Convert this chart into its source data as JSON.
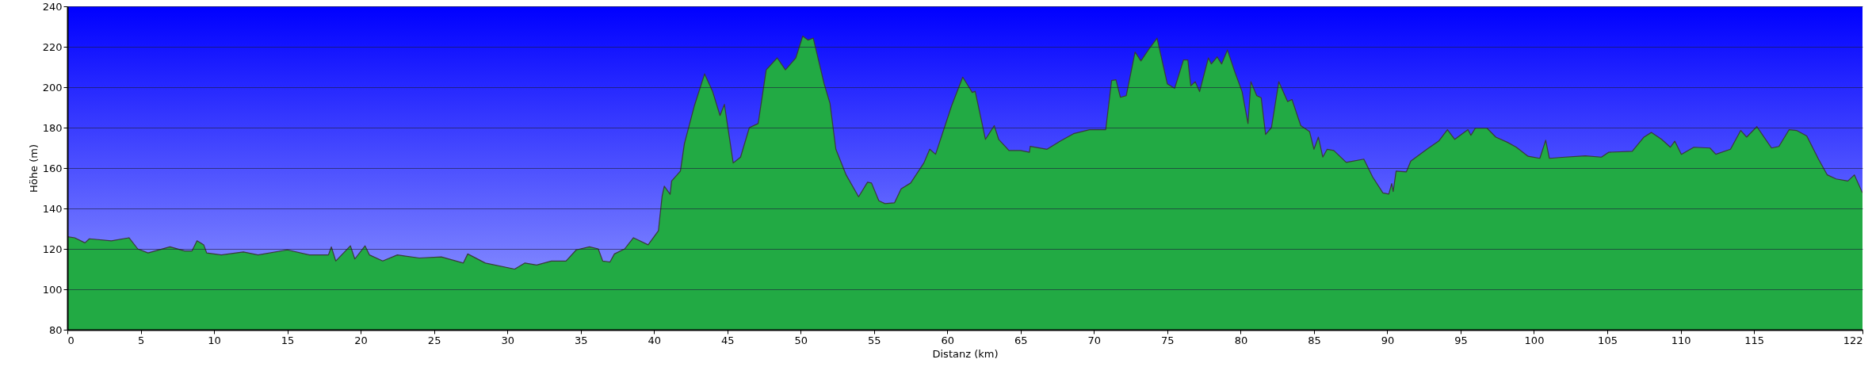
{
  "chart_data": {
    "type": "area",
    "xlabel": "Distanz (km)",
    "ylabel": "Höhe (m)",
    "xlim": [
      0,
      122.4
    ],
    "ylim": [
      80,
      240
    ],
    "xticks": [
      0,
      5,
      10,
      15,
      20,
      25,
      30,
      35,
      40,
      45,
      50,
      55,
      60,
      65,
      70,
      75,
      80,
      85,
      90,
      95,
      100,
      105,
      110,
      115,
      {
        "value": 122.4,
        "label": "122"
      }
    ],
    "yticks": [
      80,
      100,
      120,
      140,
      160,
      180,
      200,
      220,
      240
    ],
    "grid": "y",
    "x": [
      0,
      0.5,
      1.2,
      1.5,
      3,
      4.2,
      4.8,
      5.5,
      7,
      8,
      8.5,
      8.84,
      9.3,
      9.5,
      10.5,
      12,
      13,
      15,
      16.5,
      17.8,
      18,
      18.3,
      19.3,
      19.6,
      20.3,
      20.6,
      21.5,
      22.5,
      24,
      25.5,
      27,
      27.3,
      28.5,
      30.5,
      31.2,
      32,
      33,
      34,
      34.7,
      35.6,
      36.2,
      36.5,
      37,
      37.3,
      38,
      38.6,
      39.6,
      40.3,
      40.55,
      40.7,
      41.1,
      41.2,
      41.8,
      42.07,
      42.76,
      43.45,
      44,
      44.5,
      44.8,
      45.4,
      45.9,
      46.5,
      47.1,
      47.65,
      48.4,
      48.96,
      49.67,
      50.14,
      50.5,
      50.86,
      51.6,
      52,
      52.4,
      53.1,
      53.95,
      54.56,
      54.83,
      55.33,
      55.75,
      56.4,
      56.85,
      57.5,
      58.4,
      58.8,
      59.2,
      60.3,
      61.05,
      61.7,
      61.9,
      62.6,
      63.2,
      63.5,
      64.2,
      65,
      65.6,
      65.65,
      66.8,
      67.7,
      68.6,
      69.7,
      70.8,
      71.2,
      71.5,
      71.8,
      72.2,
      72.8,
      73.2,
      73.8,
      74.3,
      75,
      75.5,
      76.1,
      76.4,
      76.6,
      76.9,
      77.2,
      77.8,
      78,
      78.4,
      78.7,
      79.1,
      79.6,
      80.1,
      80.5,
      80.7,
      81.1,
      81.4,
      81.7,
      82.1,
      82.6,
      83.2,
      83.5,
      84.1,
      84.7,
      85,
      85.3,
      85.6,
      85.9,
      86.35,
      87.2,
      88.4,
      89,
      89.7,
      90.1,
      90.3,
      90.4,
      90.6,
      91.3,
      91.6,
      92.7,
      93.5,
      94.1,
      94.6,
      95.5,
      95.7,
      96,
      96.8,
      97.4,
      98.2,
      98.8,
      99.6,
      100.4,
      100.8,
      101.05,
      102.1,
      103.5,
      104.6,
      105.1,
      106.7,
      107.5,
      108,
      108.7,
      109.3,
      109.6,
      110.05,
      110.9,
      112,
      112.4,
      113.4,
      114.1,
      114.5,
      115.2,
      115.6,
      116.2,
      116.7,
      117.4,
      117.9,
      118.6,
      119.4,
      120,
      120.6,
      121.4,
      121.85,
      122.4
    ],
    "series": [
      {
        "color": "#22aa44",
        "values": [
          126,
          125.5,
          123,
          125,
          124,
          125.5,
          120,
          118,
          121,
          119,
          119,
          124,
          122,
          118,
          117,
          118.5,
          117,
          119.5,
          117,
          117,
          121,
          114,
          121.5,
          115,
          121.5,
          117,
          114,
          117,
          115.5,
          116,
          113,
          117.5,
          113,
          110,
          113,
          112,
          114,
          114,
          119.5,
          121,
          120,
          114,
          113.5,
          117.5,
          120,
          125.5,
          122,
          129,
          146,
          151,
          147,
          153.6,
          158.5,
          172,
          191,
          206.6,
          197.8,
          186,
          191.5,
          162.5,
          165.4,
          180,
          182,
          208.6,
          214.5,
          208.6,
          214.5,
          225.3,
          223.3,
          224.3,
          201.7,
          192,
          169.3,
          156.6,
          145.8,
          153,
          152.6,
          143.8,
          142.4,
          142.8,
          149.7,
          152.6,
          162.5,
          169.3,
          166.8,
          191,
          205,
          197.4,
          198,
          174.2,
          181,
          174.2,
          168.7,
          168.7,
          167.8,
          170.7,
          169.3,
          173.3,
          177,
          179,
          179,
          203.3,
          203.7,
          195,
          195.8,
          217.4,
          213,
          219.4,
          224.3,
          201.7,
          199.4,
          213.5,
          213.5,
          200.7,
          202.7,
          197.8,
          214.5,
          211.5,
          215,
          211.5,
          218.4,
          207.6,
          197.8,
          182,
          202.7,
          195.8,
          194.8,
          176.6,
          180,
          202.7,
          192.9,
          193.9,
          181,
          178,
          169.3,
          175.3,
          165.4,
          169.3,
          168.7,
          162.8,
          164.4,
          155.6,
          147.7,
          147.1,
          152.3,
          148.4,
          158.5,
          158.1,
          163.4,
          169.3,
          173.3,
          179,
          174.2,
          179,
          176.2,
          179.7,
          179.7,
          175.3,
          172.7,
          170.3,
          165.8,
          164.8,
          173.8,
          164.8,
          165.4,
          166,
          165.4,
          167.8,
          168.3,
          175.3,
          177.6,
          174.2,
          170.3,
          173.3,
          166.8,
          170.3,
          169.9,
          166.8,
          169.3,
          178.6,
          175.3,
          180.5,
          176.2,
          169.9,
          170.7,
          179,
          178.6,
          175.9,
          164.4,
          156.6,
          154.6,
          153.6,
          156.6,
          147.7
        ]
      }
    ]
  }
}
